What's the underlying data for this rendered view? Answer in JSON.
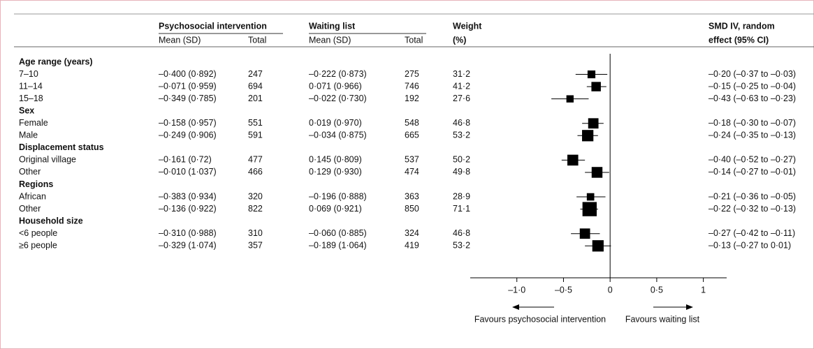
{
  "chart_data": {
    "type": "forest",
    "header": {
      "psych_title": "Psychosocial intervention",
      "psych_sub": [
        "Mean (SD)",
        "Total"
      ],
      "wait_title": "Waiting list",
      "wait_sub": [
        "Mean (SD)",
        "Total"
      ],
      "weight": [
        "Weight",
        "(%)"
      ],
      "ci": [
        "SMD IV, random",
        "effect (95% CI)"
      ]
    },
    "groups": [
      {
        "label": "Age range (years)",
        "rows": [
          {
            "label": "7–10",
            "psych_mean_sd": "–0·400 (0·892)",
            "psych_total": 247,
            "wait_mean_sd": "–0·222 (0·873)",
            "wait_total": 275,
            "weight": 31.2,
            "weight_label": "31·2",
            "smd": -0.2,
            "lo": -0.37,
            "hi": -0.03,
            "ci_label": "–0·20 (–0·37 to –0·03)"
          },
          {
            "label": "11–14",
            "psych_mean_sd": "–0·071 (0·959)",
            "psych_total": 694,
            "wait_mean_sd": "0·071 (0·966)",
            "wait_total": 746,
            "weight": 41.2,
            "weight_label": "41·2",
            "smd": -0.15,
            "lo": -0.25,
            "hi": -0.04,
            "ci_label": "–0·15 (–0·25 to –0·04)"
          },
          {
            "label": "15–18",
            "psych_mean_sd": "–0·349 (0·785)",
            "psych_total": 201,
            "wait_mean_sd": "–0·022 (0·730)",
            "wait_total": 192,
            "weight": 27.6,
            "weight_label": "27·6",
            "smd": -0.43,
            "lo": -0.63,
            "hi": -0.23,
            "ci_label": "–0·43 (–0·63 to –0·23)"
          }
        ]
      },
      {
        "label": "Sex",
        "rows": [
          {
            "label": "Female",
            "psych_mean_sd": "–0·158 (0·957)",
            "psych_total": 551,
            "wait_mean_sd": "0·019 (0·970)",
            "wait_total": 548,
            "weight": 46.8,
            "weight_label": "46·8",
            "smd": -0.18,
            "lo": -0.3,
            "hi": -0.07,
            "ci_label": "–0·18 (–0·30 to –0·07)"
          },
          {
            "label": "Male",
            "psych_mean_sd": "–0·249 (0·906)",
            "psych_total": 591,
            "wait_mean_sd": "–0·034 (0·875)",
            "wait_total": 665,
            "weight": 53.2,
            "weight_label": "53·2",
            "smd": -0.24,
            "lo": -0.35,
            "hi": -0.13,
            "ci_label": "–0·24 (–0·35 to –0·13)"
          }
        ]
      },
      {
        "label": "Displacement status",
        "rows": [
          {
            "label": "Original village",
            "psych_mean_sd": "–0·161 (0·72)",
            "psych_total": 477,
            "wait_mean_sd": "0·145 (0·809)",
            "wait_total": 537,
            "weight": 50.2,
            "weight_label": "50·2",
            "smd": -0.4,
            "lo": -0.52,
            "hi": -0.27,
            "ci_label": "–0·40 (–0·52 to –0·27)"
          },
          {
            "label": "Other",
            "psych_mean_sd": "–0·010 (1·037)",
            "psych_total": 466,
            "wait_mean_sd": "0·129 (0·930)",
            "wait_total": 474,
            "weight": 49.8,
            "weight_label": "49·8",
            "smd": -0.14,
            "lo": -0.27,
            "hi": -0.01,
            "ci_label": "–0·14 (–0·27 to –0·01)"
          }
        ]
      },
      {
        "label": "Regions",
        "rows": [
          {
            "label": "African",
            "psych_mean_sd": "–0·383 (0·934)",
            "psych_total": 320,
            "wait_mean_sd": "–0·196 (0·888)",
            "wait_total": 363,
            "weight": 28.9,
            "weight_label": "28·9",
            "smd": -0.21,
            "lo": -0.36,
            "hi": -0.05,
            "ci_label": "–0·21 (–0·36 to –0·05)"
          },
          {
            "label": "Other",
            "psych_mean_sd": "–0·136 (0·922)",
            "psych_total": 822,
            "wait_mean_sd": "0·069 (0·921)",
            "wait_total": 850,
            "weight": 71.1,
            "weight_label": "71·1",
            "smd": -0.22,
            "lo": -0.32,
            "hi": -0.13,
            "ci_label": "–0·22 (–0·32 to –0·13)"
          }
        ]
      },
      {
        "label": "Household size",
        "rows": [
          {
            "label": "<6 people",
            "psych_mean_sd": "–0·310 (0·988)",
            "psych_total": 310,
            "wait_mean_sd": "–0·060 (0·885)",
            "wait_total": 324,
            "weight": 46.8,
            "weight_label": "46·8",
            "smd": -0.27,
            "lo": -0.42,
            "hi": -0.11,
            "ci_label": "–0·27 (–0·42 to –0·11)"
          },
          {
            "label": "≥6 people",
            "psych_mean_sd": "–0·329 (1·074)",
            "psych_total": 357,
            "wait_mean_sd": "–0·189 (1·064)",
            "wait_total": 419,
            "weight": 53.2,
            "weight_label": "53·2",
            "smd": -0.13,
            "lo": -0.27,
            "hi": 0.01,
            "ci_label": "–0·13 (–0·27 to 0·01)"
          }
        ]
      }
    ],
    "xlim": [
      -1.5,
      1.25
    ],
    "xticks": [
      {
        "value": -1,
        "label": "–1·0"
      },
      {
        "value": -0.5,
        "label": "–0·5"
      },
      0,
      {
        "value": 0.5,
        "label": "0·5"
      },
      1
    ],
    "favours_left": "Favours psychosocial intervention",
    "favours_right": "Favours waiting list",
    "color": "#000000"
  }
}
